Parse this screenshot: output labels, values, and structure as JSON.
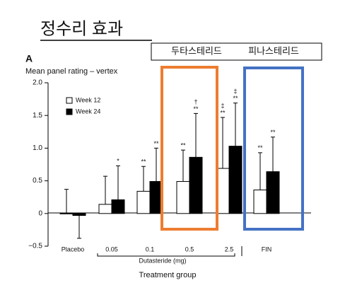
{
  "header": {
    "title": "정수리 효과",
    "labels": [
      "두타스테리드",
      "피나스테리드"
    ]
  },
  "chart_data": {
    "type": "bar",
    "panel": "A",
    "title": "Mean panel rating – vertex",
    "categories": [
      "Placebo",
      "0.05",
      "0.1",
      "0.5",
      "2.5",
      "FIN"
    ],
    "group_label": "Dutasteride (mg)",
    "x_label": "Treatment group",
    "series": [
      {
        "name": "Week 12",
        "color": "#ffffff",
        "values": [
          0.0,
          0.14,
          0.34,
          0.49,
          0.69,
          0.36
        ],
        "errors": [
          0.37,
          0.43,
          0.38,
          0.48,
          0.78,
          0.57
        ],
        "annotations": [
          null,
          null,
          "**",
          "**",
          "**",
          "**"
        ],
        "annotations_top": [
          null,
          null,
          null,
          null,
          "‡",
          null
        ]
      },
      {
        "name": "Week 24",
        "color": "#000000",
        "values": [
          -0.03,
          0.21,
          0.49,
          0.86,
          1.03,
          0.64
        ],
        "errors": [
          0.35,
          0.52,
          0.51,
          0.67,
          0.66,
          0.53
        ],
        "annotations": [
          null,
          "*",
          "**",
          "**",
          "**",
          "**"
        ],
        "annotations_top": [
          null,
          null,
          null,
          "†",
          "‡",
          null
        ]
      }
    ],
    "ylim": [
      -0.5,
      2.0
    ],
    "yticks": [
      {
        "value": -0.5,
        "label": "−0.5"
      },
      0,
      {
        "value": 0.5,
        "label": "0.5"
      },
      {
        "value": 1,
        "label": "1.0"
      },
      {
        "value": 1.5,
        "label": "1.5"
      },
      {
        "value": 2,
        "label": "2.0"
      }
    ],
    "legend": "top-left"
  }
}
